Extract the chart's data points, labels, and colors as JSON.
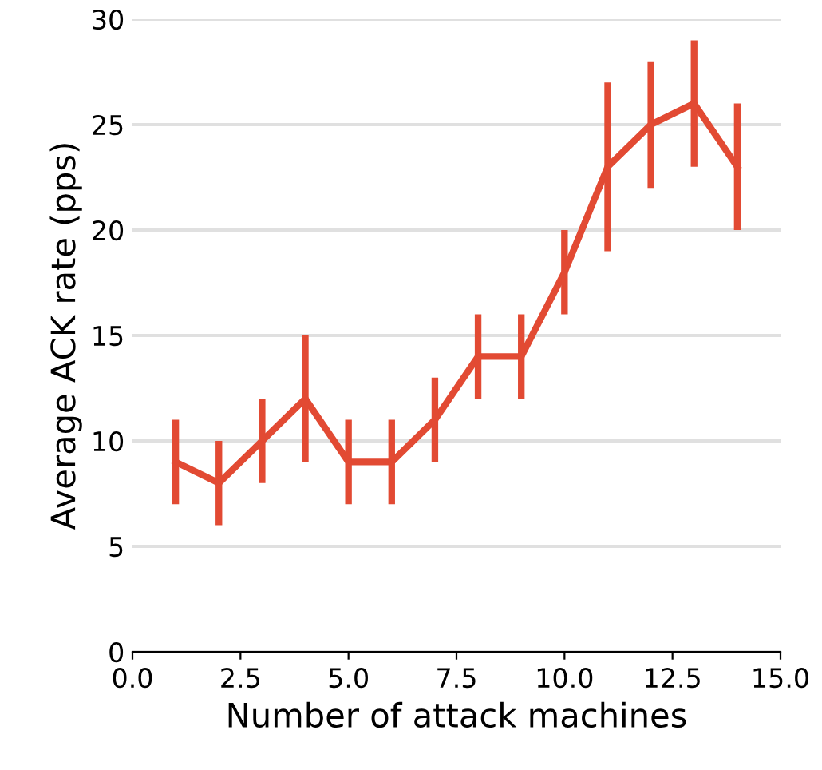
{
  "chart_data": {
    "type": "line",
    "xlabel": "Number of attack machines",
    "ylabel": "Average ACK rate (pps)",
    "x": [
      1,
      2,
      3,
      4,
      5,
      6,
      7,
      8,
      9,
      10,
      11,
      12,
      13,
      14
    ],
    "series": [
      {
        "color": "#e24a33",
        "values": [
          9,
          8,
          10,
          12,
          9,
          9,
          11,
          14,
          14,
          18,
          23,
          25,
          26,
          23
        ],
        "errors": [
          2,
          2,
          2,
          3,
          2,
          2,
          2,
          2,
          2,
          2,
          4,
          3,
          3,
          3
        ]
      }
    ],
    "xlim": [
      0,
      15
    ],
    "xticks": [
      {
        "value": 0,
        "label": "0.0"
      },
      {
        "value": 2.5,
        "label": "2.5"
      },
      {
        "value": 5,
        "label": "5.0"
      },
      {
        "value": 7.5,
        "label": "7.5"
      },
      {
        "value": 10,
        "label": "10.0"
      },
      {
        "value": 12.5,
        "label": "12.5"
      },
      {
        "value": 15,
        "label": "15.0"
      }
    ],
    "ylim": [
      0,
      30
    ],
    "yticks": [
      0,
      5,
      10,
      15,
      20,
      25,
      30
    ],
    "grid": "y",
    "marker": "none",
    "line_style": "solid"
  }
}
